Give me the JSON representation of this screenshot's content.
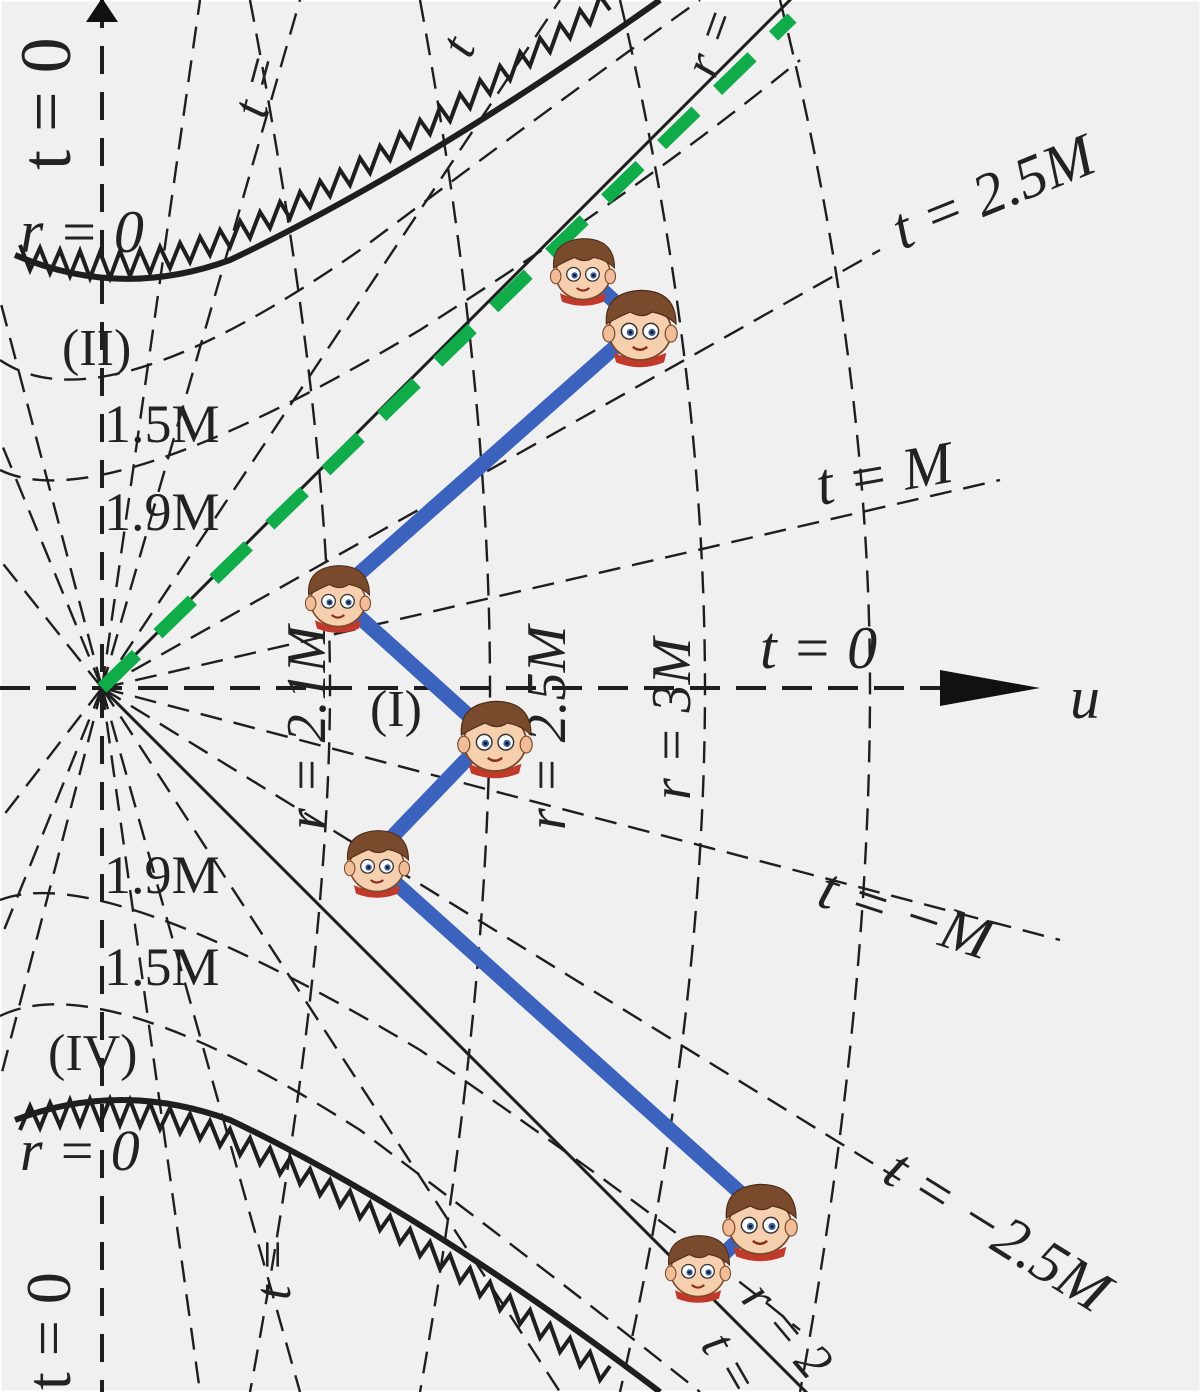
{
  "labels": {
    "r_zero_top": "r = 0",
    "r_zero_bottom": "r = 0",
    "t_zero_left_top": "t = 0",
    "t_zero_left_bottom": "t = 0",
    "region_ii": "(II)",
    "region_i": "(I)",
    "region_iv": "(IV)",
    "r_1_5m_top": "1.5M",
    "r_1_9m_top": "1.9M",
    "r_1_9m_bottom": "1.9M",
    "r_1_5m_bottom": "1.5M",
    "r_2_1m": "r = 2.1M",
    "r_2_5m": "r = 2.5M",
    "r_3m": "r = 3M",
    "t_2_5m": "t = 2.5M",
    "t_m": "t = M",
    "t_0": "t = 0",
    "t_neg_m": "t = −M",
    "t_neg_2_5m": "t = −2.5M",
    "u_axis": "u",
    "t_equals_top_a": "t =",
    "t_equals_top_b": "t",
    "r_equals_top": "r =",
    "t_equals_bottom_a": "t =",
    "t_equals_bottom_b": "t =",
    "r_equals_bottom": "r = 2"
  },
  "observers": [
    {
      "name": "boy-head-1"
    },
    {
      "name": "boy-head-2"
    },
    {
      "name": "boy-head-3"
    },
    {
      "name": "boy-head-4"
    },
    {
      "name": "boy-head-5"
    },
    {
      "name": "boy-head-6"
    },
    {
      "name": "boy-head-7"
    },
    {
      "name": "boy-head-8"
    }
  ],
  "colors": {
    "worldline": "#3b62bd",
    "light_ray": "#11ac4a",
    "ink": "#1e1e1e",
    "background": "#f0f0f0"
  }
}
